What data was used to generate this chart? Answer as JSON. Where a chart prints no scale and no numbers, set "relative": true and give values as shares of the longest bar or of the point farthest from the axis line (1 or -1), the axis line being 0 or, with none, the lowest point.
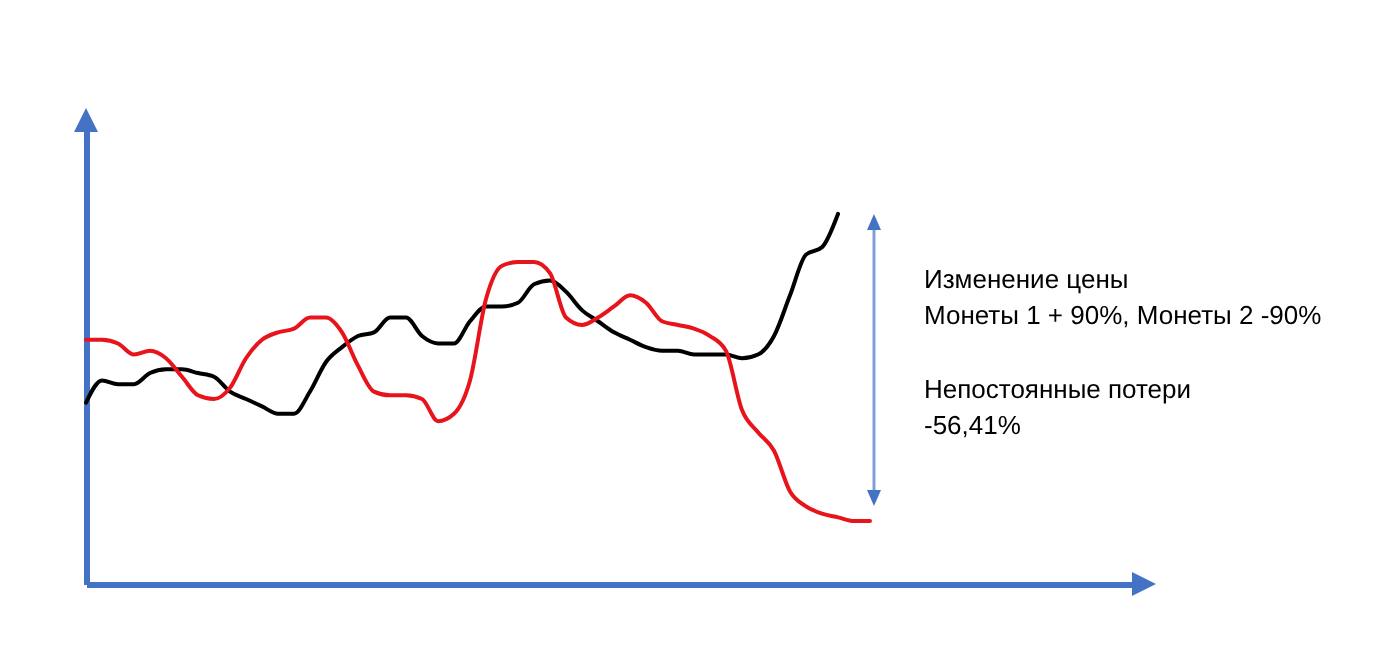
{
  "chart_data": {
    "type": "line",
    "relative": true,
    "tick_labels": false,
    "categories": [
      null,
      null,
      null,
      null,
      null,
      null,
      null,
      null,
      null,
      null,
      null,
      null,
      null,
      null,
      null,
      null,
      null,
      null,
      null,
      null,
      null,
      null,
      null,
      null,
      null,
      null,
      null,
      null,
      null,
      null,
      null,
      null,
      null,
      null,
      null,
      null,
      null,
      null,
      null,
      null,
      null,
      null,
      null,
      null,
      null,
      null,
      null,
      null,
      null,
      null
    ],
    "series": [
      {
        "color": "#000000",
        "values": [
          0.49,
          0.55,
          0.54,
          0.54,
          0.57,
          0.58,
          0.58,
          0.57,
          0.56,
          0.52,
          0.5,
          0.48,
          0.46,
          0.46,
          0.52,
          0.6,
          0.64,
          0.67,
          0.68,
          0.72,
          0.72,
          0.67,
          0.65,
          0.65,
          0.71,
          0.75,
          0.75,
          0.76,
          0.81,
          0.82,
          0.79,
          0.74,
          0.71,
          0.68,
          0.66,
          0.64,
          0.63,
          0.63,
          0.62,
          0.62,
          0.62,
          0.61,
          0.62,
          0.67,
          0.78,
          0.89,
          0.91,
          1,
          null,
          null
        ]
      },
      {
        "color": "#e8141c",
        "values": [
          0.66,
          0.66,
          0.65,
          0.62,
          0.63,
          0.61,
          0.56,
          0.51,
          0.5,
          0.53,
          0.61,
          0.66,
          0.68,
          0.69,
          0.72,
          0.72,
          0.68,
          0.59,
          0.52,
          0.51,
          0.51,
          0.5,
          0.44,
          0.46,
          0.55,
          0.77,
          0.86,
          0.87,
          0.87,
          0.84,
          0.72,
          0.7,
          0.72,
          0.75,
          0.78,
          0.76,
          0.71,
          0.7,
          0.69,
          0.67,
          0.63,
          0.47,
          0.41,
          0.36,
          0.25,
          0.21,
          0.19,
          0.18,
          0.17,
          0.17
        ]
      }
    ],
    "annotations": [
      "Изменение цены\nМонеты 1 + 90%, Монеты 2 -90%",
      "Непостоянные потери\n-56,41%"
    ]
  }
}
